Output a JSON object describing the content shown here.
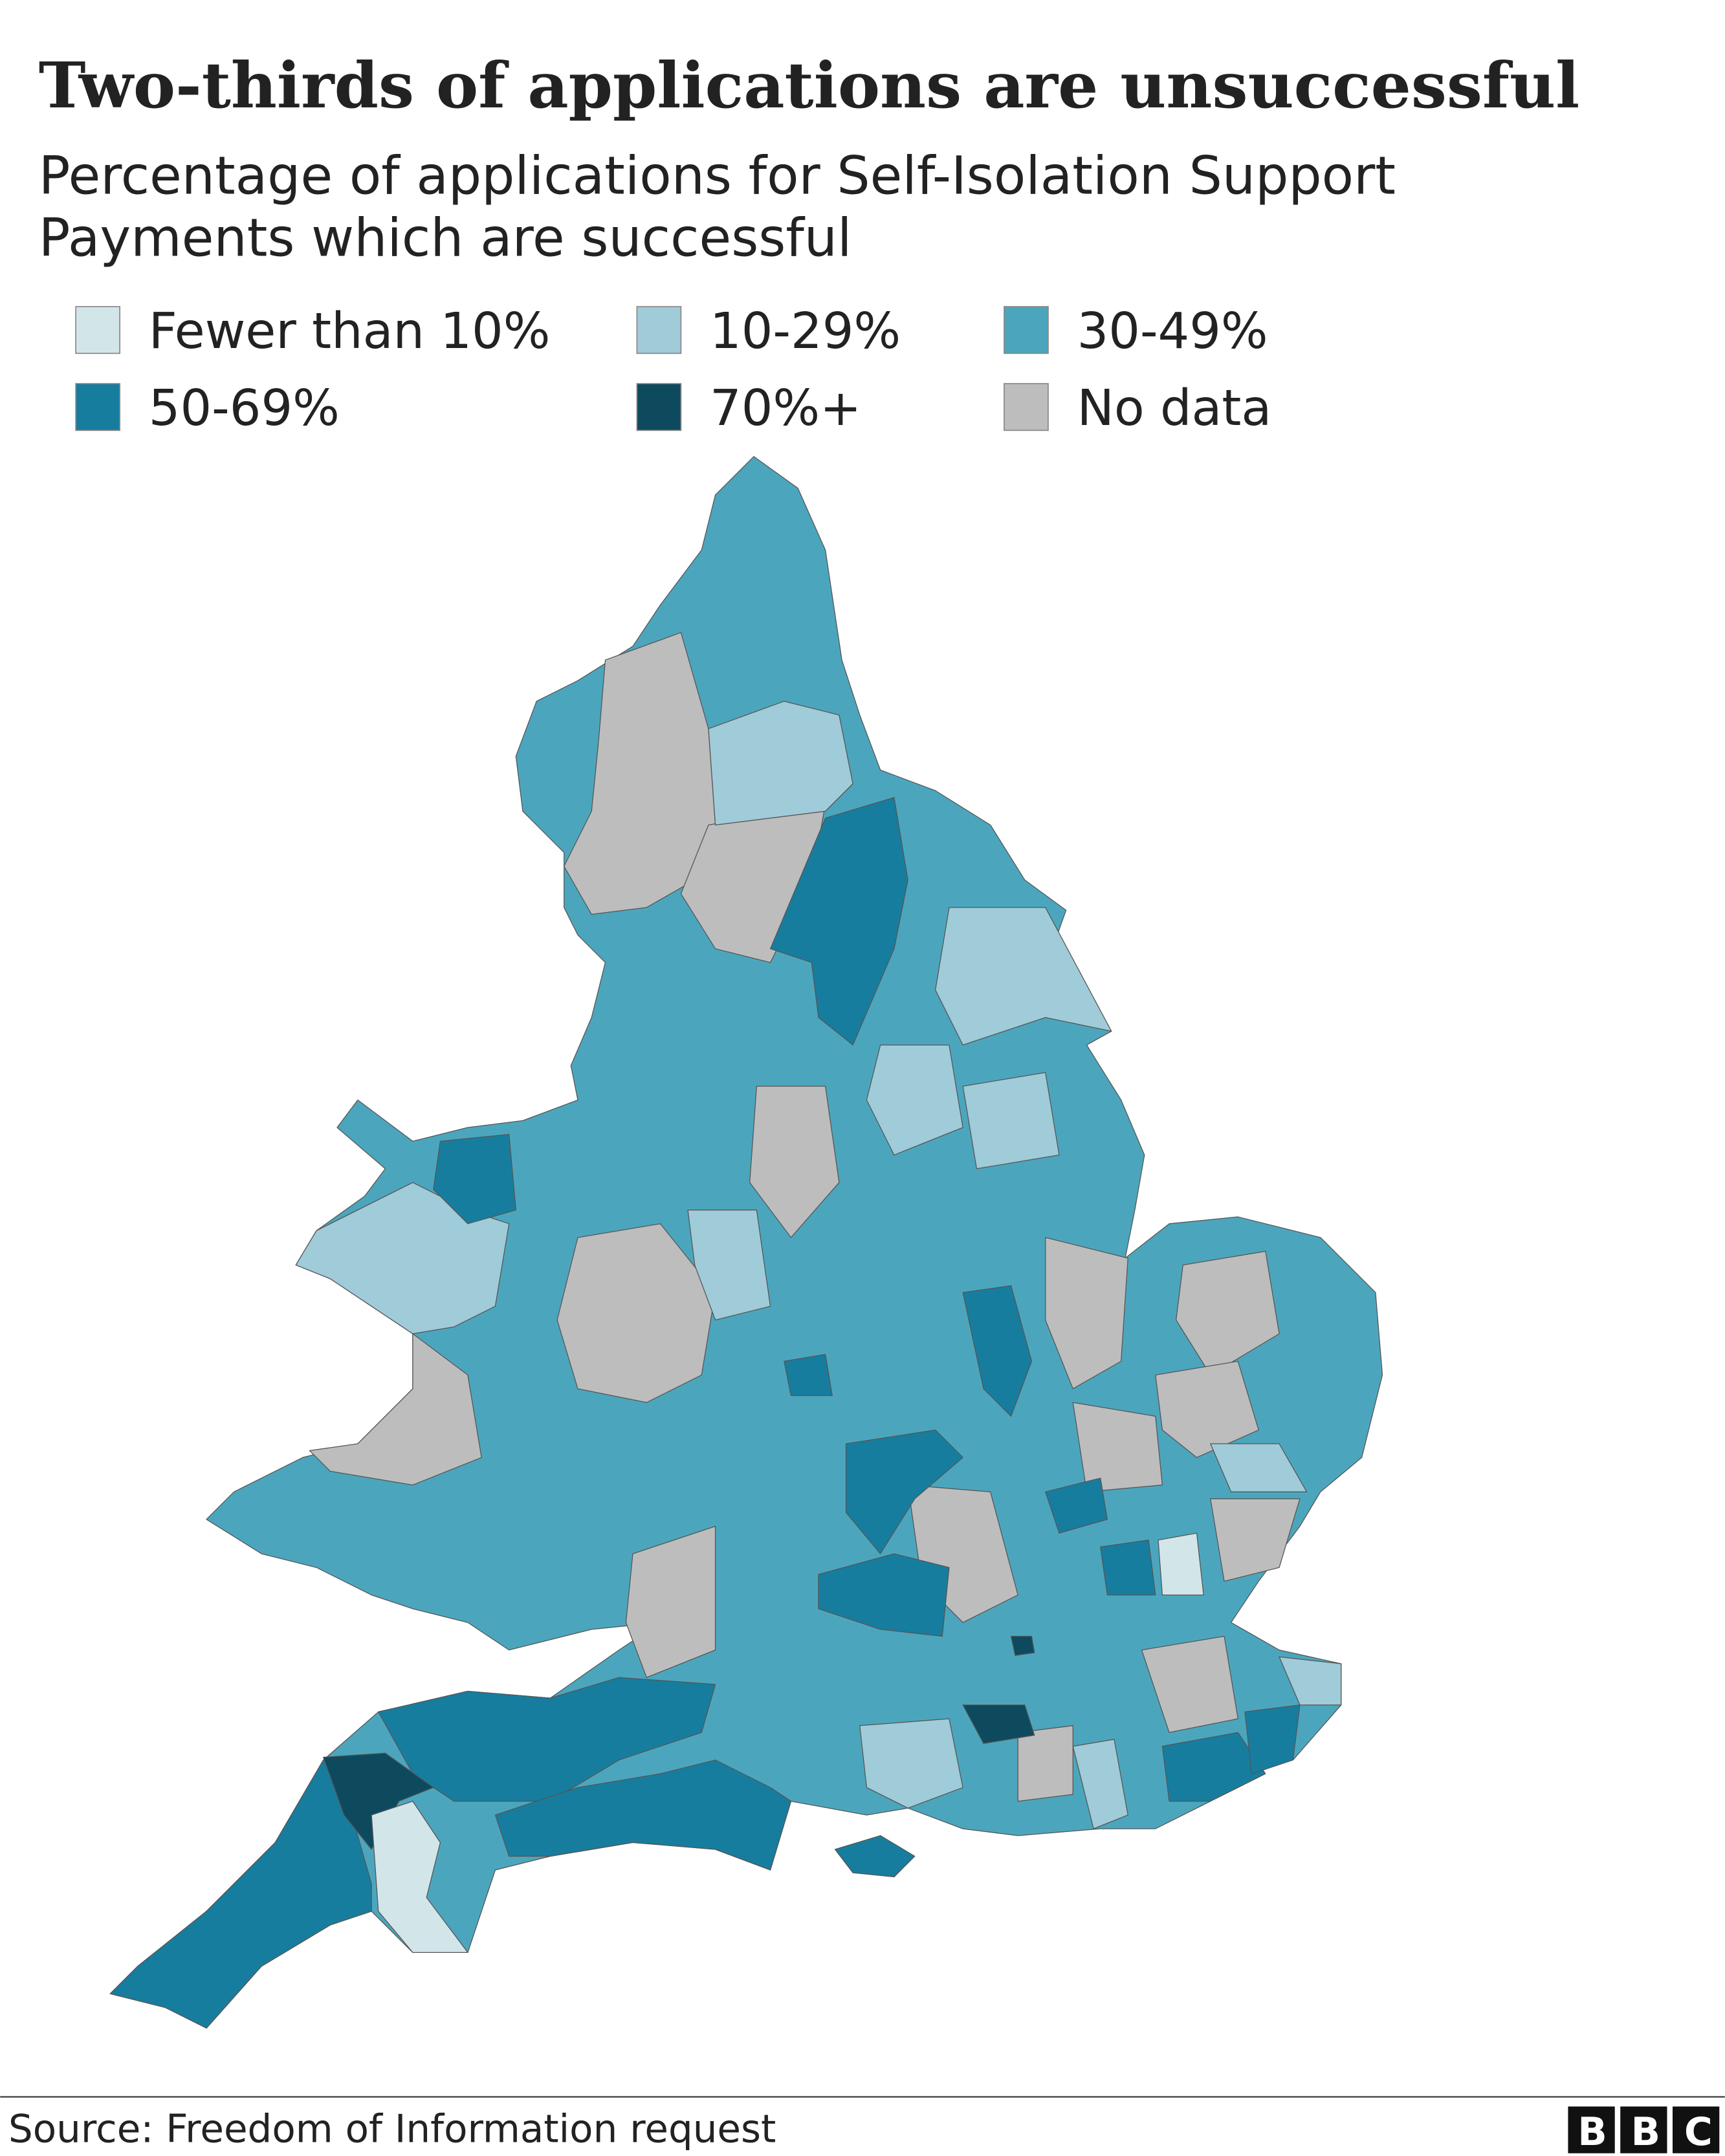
{
  "title": "Two-thirds of applications are unsuccessful",
  "subtitle": "Percentage of applications for Self-Isolation Support Payments which are successful",
  "legend": [
    {
      "label": "Fewer than 10%",
      "color": "#d2e6ea"
    },
    {
      "label": "10-29%",
      "color": "#a0cbd9"
    },
    {
      "label": "30-49%",
      "color": "#4ba6bd"
    },
    {
      "label": "50-69%",
      "color": "#177d9e"
    },
    {
      "label": "70%+",
      "color": "#0d4a5e"
    },
    {
      "label": "No data",
      "color": "#bdbdbd"
    }
  ],
  "source": "Source: Freedom of Information request",
  "logo": "BBC"
}
